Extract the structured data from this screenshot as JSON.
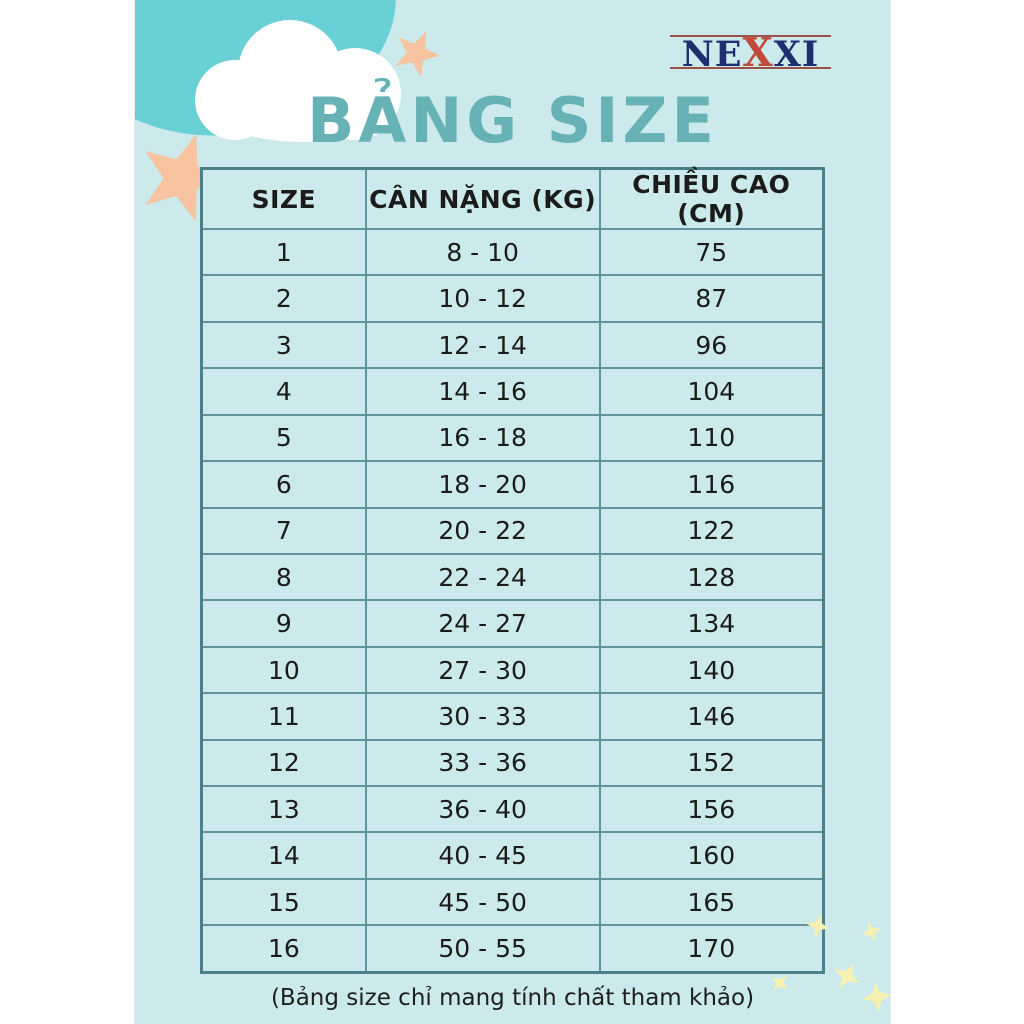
{
  "brand": {
    "name": "NEXXI",
    "part_ne": "NE",
    "part_x": "X",
    "part_xi": "XI"
  },
  "title": "BẢNG SIZE",
  "table": {
    "headers": [
      "SIZE",
      "CÂN NẶNG (KG)",
      "CHIỀU CAO (CM)"
    ],
    "rows": [
      [
        "1",
        "8 - 10",
        "75"
      ],
      [
        "2",
        "10 - 12",
        "87"
      ],
      [
        "3",
        "12 - 14",
        "96"
      ],
      [
        "4",
        "14 - 16",
        "104"
      ],
      [
        "5",
        "16 - 18",
        "110"
      ],
      [
        "6",
        "18 - 20",
        "116"
      ],
      [
        "7",
        "20 - 22",
        "122"
      ],
      [
        "8",
        "22 - 24",
        "128"
      ],
      [
        "9",
        "24 - 27",
        "134"
      ],
      [
        "10",
        "27 - 30",
        "140"
      ],
      [
        "11",
        "30 - 33",
        "146"
      ],
      [
        "12",
        "33 - 36",
        "152"
      ],
      [
        "13",
        "36 - 40",
        "156"
      ],
      [
        "14",
        "40 - 45",
        "160"
      ],
      [
        "15",
        "45 - 50",
        "165"
      ],
      [
        "16",
        "50 - 55",
        "170"
      ]
    ]
  },
  "footer_note": "(Bảng size chỉ mang tính chất tham khảo)",
  "colors": {
    "poster_background": "#cceaec",
    "accent_teal_blob": "#69d0d6",
    "title_teal": "#67b2b4",
    "table_border": "#5f949c",
    "peach_star": "#f7c3a1",
    "pale_yellow_star": "#f6f1b0",
    "logo_navy": "#1f2e6e",
    "logo_red": "#c14b38",
    "text_dark": "#1b1b1b"
  }
}
